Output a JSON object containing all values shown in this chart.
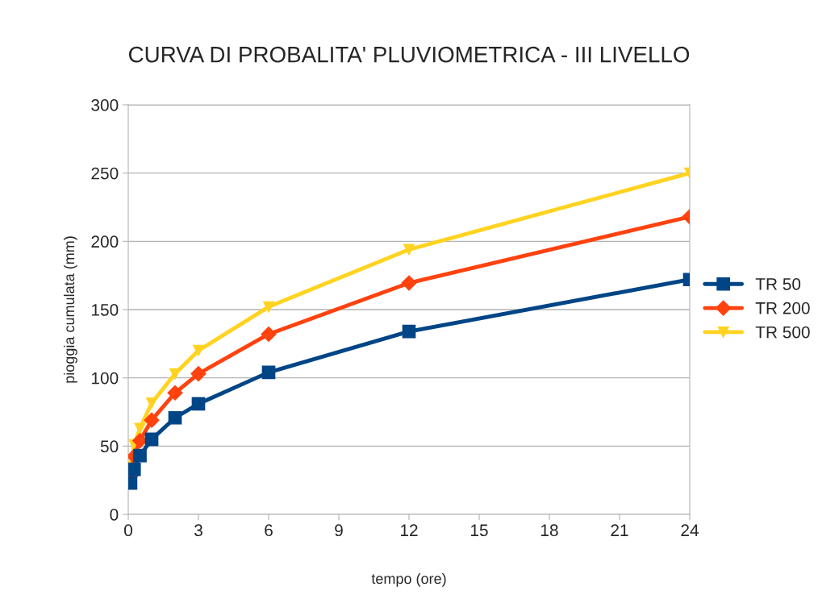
{
  "chart_data": {
    "type": "line",
    "title": "CURVA DI PROBALITA' PLUVIOMETRICA - III LIVELLO",
    "xlabel": "tempo (ore)",
    "ylabel": "pioggia cumulata (mm)",
    "x": [
      0.1,
      0.25,
      0.5,
      1,
      2,
      3,
      6,
      12,
      24
    ],
    "series": [
      {
        "name": "TR 50",
        "color": "#004586",
        "marker": "square",
        "values": [
          23,
          33,
          43,
          55,
          70.7,
          81,
          104,
          134,
          172
        ]
      },
      {
        "name": "TR 200",
        "color": "#ff420e",
        "marker": "diamond",
        "values": [
          28,
          42.5,
          54,
          69,
          89,
          103,
          132,
          169.5,
          218
        ]
      },
      {
        "name": "TR 500",
        "color": "#ffd320",
        "marker": "triangle",
        "values": [
          35,
          51,
          63,
          81.5,
          103,
          120,
          152,
          194,
          250
        ]
      }
    ],
    "xlim": [
      0,
      24
    ],
    "xticks": [
      0,
      3,
      6,
      9,
      12,
      15,
      18,
      21,
      24
    ],
    "ylim": [
      0,
      300
    ],
    "yticks": [
      0,
      50,
      100,
      150,
      200,
      250,
      300
    ],
    "grid": "y",
    "legend": "right"
  }
}
